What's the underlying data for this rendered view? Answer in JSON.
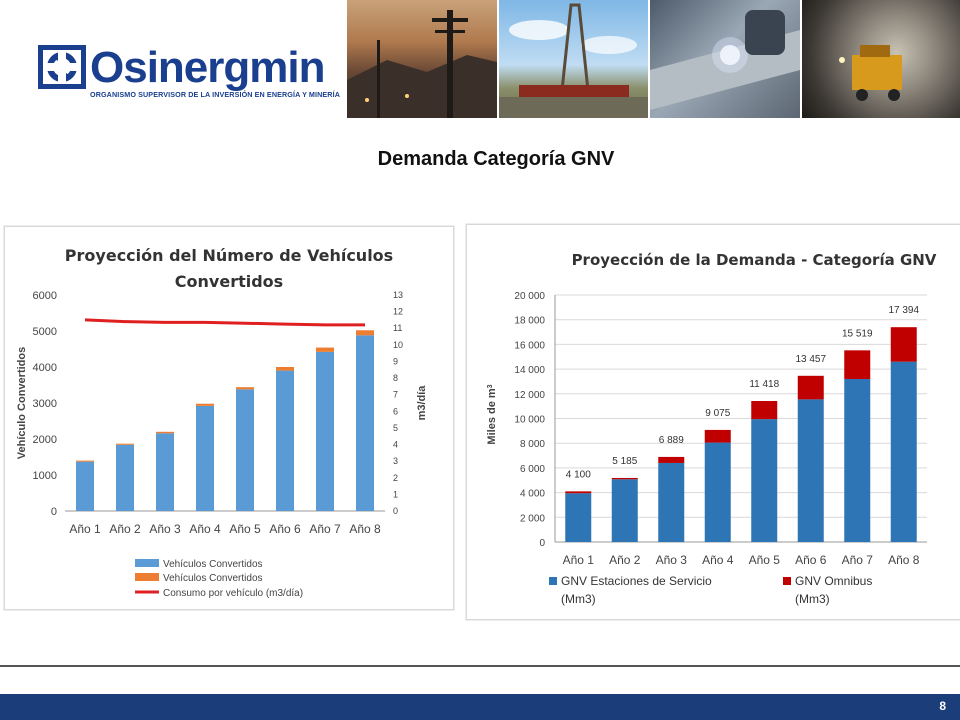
{
  "header": {
    "logo_name": "Osinergmin",
    "logo_tagline": "ORGANISMO SUPERVISOR DE LA INVERSIÓN EN ENERGÍA Y MINERÍA",
    "photos": [
      "power-lines-photo",
      "drilling-rig-photo",
      "welding-pipeline-photo",
      "mine-tunnel-photo"
    ]
  },
  "page_title": "Demanda Categoría GNV",
  "footer": {
    "page_number": "8"
  },
  "colors": {
    "brand_blue": "#1a3f8f",
    "footer_blue": "#1b3d7a",
    "left_bar_blue": "#5b9bd5",
    "left_bar_orange": "#ed7d31",
    "left_line_red": "#e02020",
    "right_bar_blue": "#2e75b6",
    "right_bar_red": "#c00000"
  },
  "chart_data": [
    {
      "type": "bar",
      "title_lines": [
        "Proyección del Número de Vehículos",
        "Convertidos"
      ],
      "categories": [
        "Año 1",
        "Año 2",
        "Año 3",
        "Año 4",
        "Año 5",
        "Año 6",
        "Año 7",
        "Año 8"
      ],
      "ylabel": "Vehículo Convertidos",
      "ylim": [
        0,
        6000
      ],
      "yticks": [
        "0",
        "1000",
        "2000",
        "3000",
        "4000",
        "5000",
        "6000"
      ],
      "y2label": "m3/día",
      "y2lim": [
        0,
        13
      ],
      "y2ticks": [
        "0",
        "1",
        "2",
        "3",
        "4",
        "5",
        "6",
        "7",
        "8",
        "9",
        "10",
        "11",
        "12",
        "13"
      ],
      "stacked": true,
      "series": [
        {
          "name": "Vehículos Convertidos",
          "color": "#5b9bd5",
          "values": [
            1370,
            1840,
            2160,
            2920,
            3380,
            3900,
            4420,
            4880
          ]
        },
        {
          "name": "Vehículos Convertidos",
          "color": "#ed7d31",
          "values": [
            30,
            30,
            40,
            60,
            60,
            100,
            120,
            140
          ]
        },
        {
          "name": "Consumo por vehículo (m3/día)",
          "type": "line",
          "axis": "secondary",
          "color": "#e02020",
          "values": [
            11.5,
            11.4,
            11.35,
            11.35,
            11.3,
            11.25,
            11.2,
            11.2
          ]
        }
      ],
      "legend_position": "bottom",
      "grid": false
    },
    {
      "type": "bar",
      "title": "Proyección de la Demanda - Categoría GNV",
      "categories": [
        "Año 1",
        "Año 2",
        "Año 3",
        "Año 4",
        "Año 5",
        "Año 6",
        "Año 7",
        "Año 8"
      ],
      "ylabel": "Miles de m",
      "ylabel_sup": "3",
      "ylim": [
        0,
        20000
      ],
      "yticks": [
        "0",
        "2 000",
        "4 000",
        "6 000",
        "8 000",
        "10 000",
        "12 000",
        "14 000",
        "16 000",
        "18 000",
        "20 000"
      ],
      "stacked": true,
      "series": [
        {
          "name": "GNV Estaciones de Servicio (Mm3)",
          "legend_lines": [
            "GNV Estaciones de Servicio",
            "(Mm3)"
          ],
          "color": "#2e75b6",
          "values": [
            3950,
            5080,
            6400,
            8050,
            9950,
            11550,
            13200,
            14600
          ]
        },
        {
          "name": "GNV Omnibus (Mm3)",
          "legend_lines": [
            "GNV Omnibus",
            "(Mm3)"
          ],
          "color": "#c00000",
          "values": [
            150,
            105,
            489,
            1025,
            1468,
            1907,
            2319,
            2794
          ]
        }
      ],
      "totals_labels": [
        "4 100",
        "5 185",
        "6 889",
        "9 075",
        "11 418",
        "13 457",
        "15 519",
        "17 394"
      ],
      "legend_position": "bottom",
      "grid": true
    }
  ]
}
